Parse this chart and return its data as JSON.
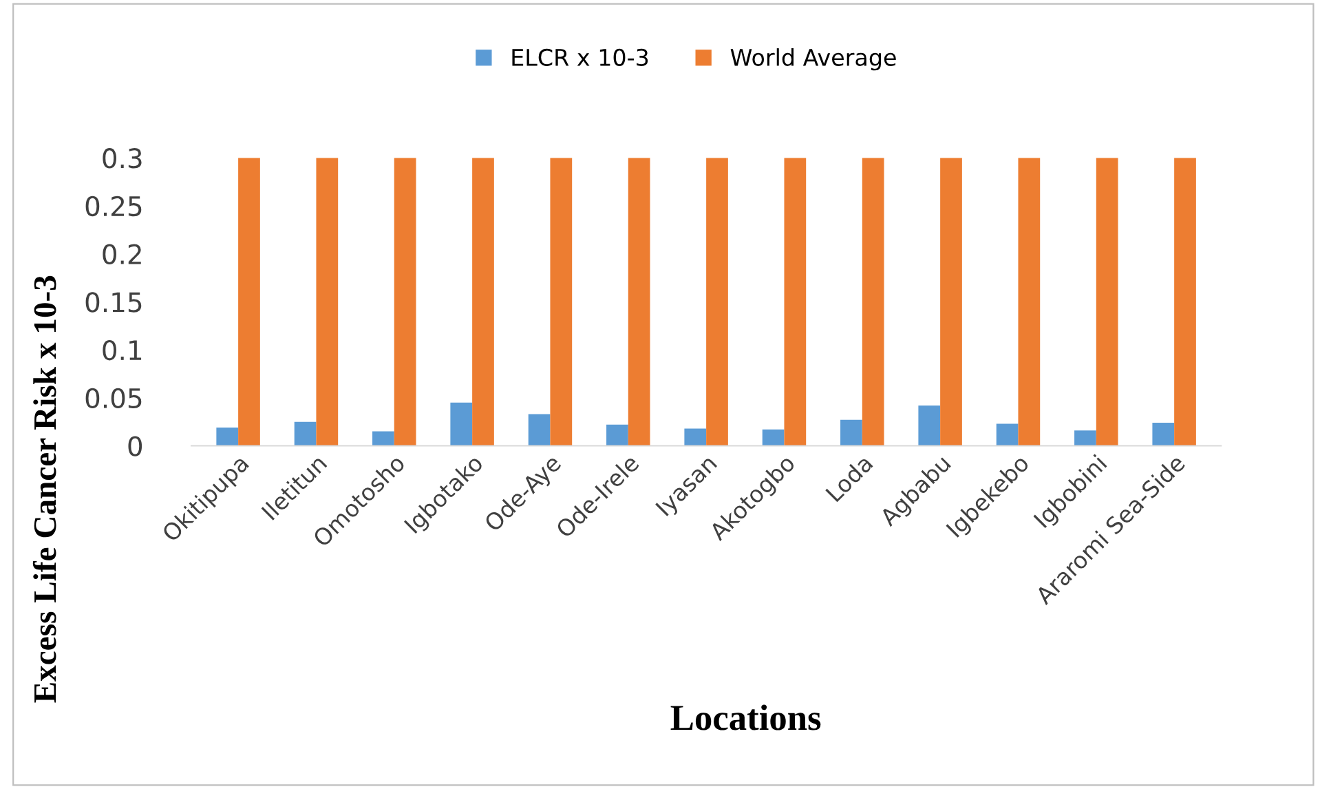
{
  "chart_data": {
    "type": "bar",
    "xlabel": "Locations",
    "ylabel": "Excess Life Cancer Risk x 10-3",
    "categories": [
      "Okitipupa",
      "Iletitun",
      "Omotosho",
      "Igbotako",
      "Ode-Aye",
      "Ode-Irele",
      "Iyasan",
      "Akotogbo",
      "Loda",
      "Agbabu",
      "Igbekebo",
      "Igbobini",
      "Araromi Sea-Side"
    ],
    "series": [
      {
        "name": "ELCR x 10-3",
        "color": "#5b9bd5",
        "values": [
          0.019,
          0.025,
          0.015,
          0.045,
          0.033,
          0.022,
          0.018,
          0.017,
          0.027,
          0.042,
          0.023,
          0.016,
          0.024
        ]
      },
      {
        "name": "World Average",
        "color": "#ed7d31",
        "values": [
          0.3,
          0.3,
          0.3,
          0.3,
          0.3,
          0.3,
          0.3,
          0.3,
          0.3,
          0.3,
          0.3,
          0.3,
          0.3
        ]
      }
    ],
    "ylim": [
      0,
      0.3
    ],
    "yticks": [
      0,
      0.05,
      0.1,
      0.15,
      0.2,
      0.25,
      0.3
    ],
    "grid": false,
    "legend": "top"
  }
}
